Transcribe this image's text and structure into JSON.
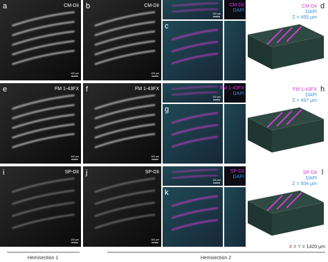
{
  "rows": [
    {
      "grayscale": [
        {
          "letter": "a",
          "label": "CM-DiI",
          "scale": "100 µm"
        },
        {
          "letter": "b",
          "label": "CM-DiI",
          "scale": "100 µm"
        }
      ],
      "composite": {
        "letter": "c",
        "labels": [
          "CM-DiI",
          "DAPI"
        ],
        "scale": "100 µm"
      },
      "render": {
        "letter": "d",
        "labels": [
          "CM-DiI",
          "DAPI",
          "Z = 455 µm"
        ]
      }
    },
    {
      "grayscale": [
        {
          "letter": "e",
          "label": "FM 1-43FX",
          "scale": "100 µm"
        },
        {
          "letter": "f",
          "label": "FM 1-43FX",
          "scale": "100 µm"
        }
      ],
      "composite": {
        "letter": "g",
        "labels": [
          "FM 1-43FX",
          "DAPI"
        ],
        "scale": "100 µm"
      },
      "render": {
        "letter": "h",
        "labels": [
          "FM 1-43FX",
          "DAPI",
          "Z = 497 µm"
        ]
      }
    },
    {
      "grayscale": [
        {
          "letter": "i",
          "label": "SP-DiI",
          "scale": "100 µm"
        },
        {
          "letter": "j",
          "label": "SP-DiI",
          "scale": "100 µm"
        }
      ],
      "composite": {
        "letter": "k",
        "labels": [
          "SP-DiI",
          "DAPI"
        ],
        "scale": "100 µm"
      },
      "render": {
        "letter": "l",
        "labels": [
          "SP-DiI",
          "DAPI",
          "Z = 504 µm"
        ]
      }
    }
  ],
  "footer": {
    "left": "Hemisection 1",
    "right": "Hemisection 2",
    "axes": [
      {
        "text": "X",
        "color": "#e0302a"
      },
      {
        "text": " = ",
        "color": "#333333"
      },
      {
        "text": "Y",
        "color": "#2aa040"
      },
      {
        "text": " = 1420 µm",
        "color": "#333333"
      }
    ]
  }
}
